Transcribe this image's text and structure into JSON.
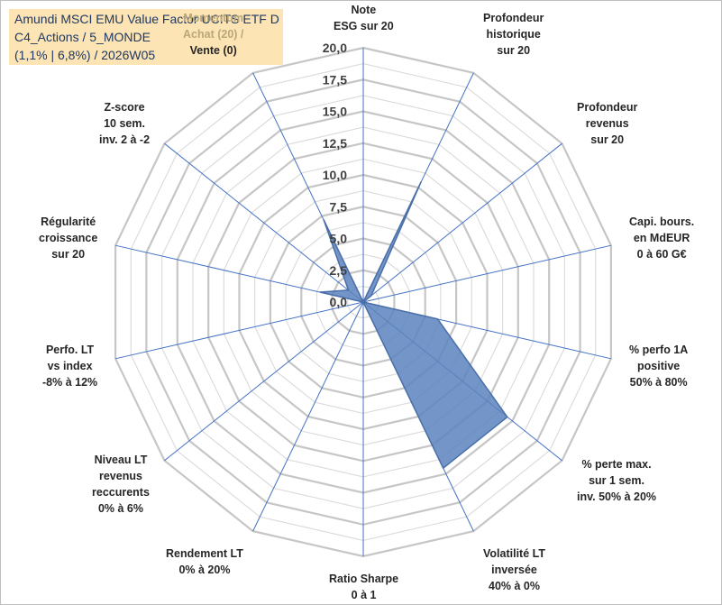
{
  "title_box": {
    "line1": "Amundi MSCI EMU Value Factor UCITS ETF D",
    "line2": "C4_Actions / 5_MONDE",
    "line3": "(1,1% | 6,8%) / 2026W05"
  },
  "colors": {
    "grid": "#c6c6c6",
    "spoke": "#4472c4",
    "series_fill": "#5b82bd",
    "series_stroke": "#4a6fa8",
    "title_bg": "#fce4b4",
    "title_text": "#1f3864"
  },
  "chart_data": {
    "type": "radar",
    "series_name": "Amundi MSCI EMU Value Factor UCITS ETF D",
    "r_range": [
      0,
      20
    ],
    "r_ticks": [
      "0,0",
      "2,5",
      "5,0",
      "7,5",
      "10,0",
      "12,5",
      "15,0",
      "17,5",
      "20,0"
    ],
    "r_tick_values": [
      0,
      2.5,
      5,
      7.5,
      10,
      12.5,
      15,
      17.5,
      20
    ],
    "axes": [
      {
        "lines": [
          "Note",
          "ESG sur 20"
        ],
        "value": 0
      },
      {
        "lines": [
          "Profondeur",
          "historique",
          "sur 20"
        ],
        "value": 10.5
      },
      {
        "lines": [
          "Profondeur",
          "revenus",
          "sur 20"
        ],
        "value": 0.8
      },
      {
        "lines": [
          "Capi. bours.",
          "en MdEUR",
          "0 à 60 G€"
        ],
        "value": 0
      },
      {
        "lines": [
          "% perfo 1A",
          "positive",
          "50% à 80%"
        ],
        "value": 6.0
      },
      {
        "lines": [
          "% perte max.",
          "sur 1 sem.",
          "inv. 50% à 20%"
        ],
        "value": 14.5
      },
      {
        "lines": [
          "Volatilité LT",
          "inversée",
          "40% à 0%"
        ],
        "value": 14.5
      },
      {
        "lines": [
          "Ratio Sharpe",
          "0 à 1"
        ],
        "value": 0
      },
      {
        "lines": [
          "Rendement LT",
          "0% à 20%"
        ],
        "value": 0
      },
      {
        "lines": [
          "Niveau LT",
          "revenus",
          "reccurents",
          "0% à 6%"
        ],
        "value": 0
      },
      {
        "lines": [
          "Perfo. LT",
          "vs index",
          "-8% à 12%"
        ],
        "value": 0
      },
      {
        "lines": [
          "Régularité",
          "croissance",
          "sur 20"
        ],
        "value": 3.5
      },
      {
        "lines": [
          "Z-score",
          "10 sem.",
          "inv. 2 à -2"
        ],
        "value": 1.5
      },
      {
        "lines": [
          "Momentum",
          "Achat (20) /",
          "Vente (0)"
        ],
        "value": 7.2
      }
    ]
  }
}
